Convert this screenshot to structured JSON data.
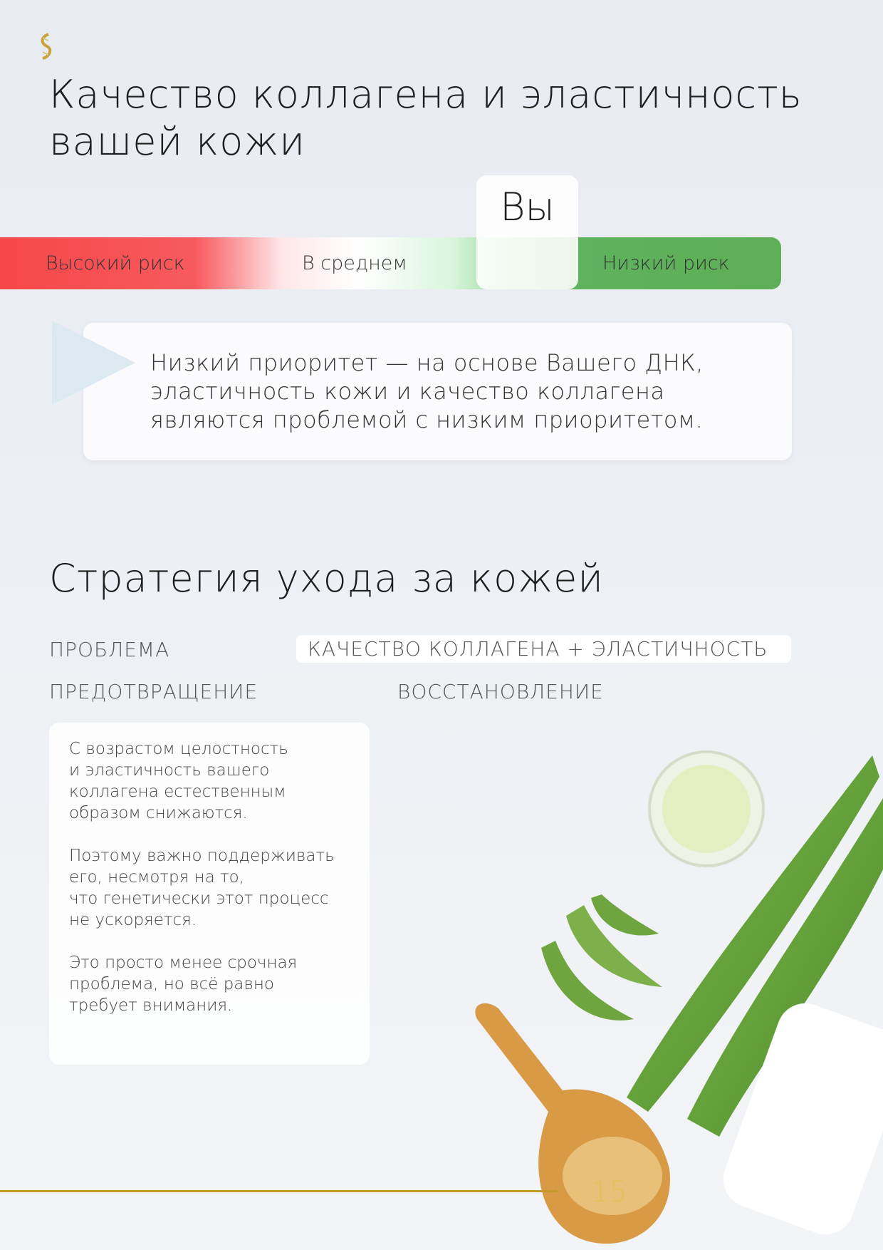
{
  "page": {
    "title": "Качество коллагена и эластичность\nвашей кожи",
    "page_number": "15",
    "accent_color": "#c69a2a"
  },
  "logo": {
    "icon": "dna-helix-icon"
  },
  "risk_scale": {
    "high": "Высокий риск",
    "average": "В среднем",
    "low": "Низкий риск",
    "marker": "Вы",
    "marker_position": "low",
    "colors": {
      "high": "#f6474a",
      "low": "#5dae55"
    }
  },
  "callout": {
    "text": "Низкий приоритет — на основе Вашего ДНК,\nэластичность кожи и качество коллагена\nявляются проблемой с низким приоритетом."
  },
  "strategy": {
    "title": "Стратегия ухода за кожей",
    "problem_label": "ПРОБЛЕМА",
    "problem_value": "КАЧЕСТВО КОЛЛАГЕНА + ЭЛАСТИЧНОСТЬ",
    "prevention_label": "ПРЕДОТВРАЩЕНИЕ",
    "recovery_label": "ВОССТАНОВЛЕНИЕ",
    "prevention_paragraphs": [
      "С возрастом целостность\nи эластичность вашего\nколлагена естественным\nобразом снижаются.",
      "Поэтому важно поддерживать\nего, несмотря на то,\nчто генетически этот процесс\nне ускоряется.",
      "Это просто менее срочная\nпроблема, но всё равно\nтребует внимания."
    ]
  }
}
